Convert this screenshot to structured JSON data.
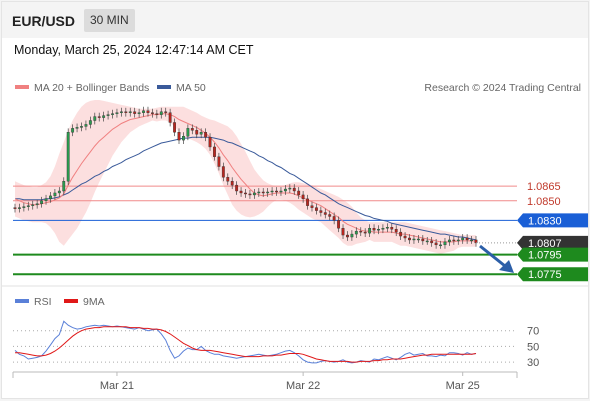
{
  "header": {
    "pair": "EUR/USD",
    "timeframe": "30 MIN",
    "timestamp": "Monday, March 25, 2024 12:47:14 AM CET"
  },
  "legend": {
    "ma20": "MA 20 + Bollinger Bands",
    "ma50": "MA 50",
    "credit": "Research © 2024 Trading Central",
    "rsi": "RSI",
    "rsi_ma": "9MA"
  },
  "colors": {
    "bollinger_fill": "#fbd4d4",
    "ma20": "#f08080",
    "ma50": "#3a5a9a",
    "resistance": "#f08a8a",
    "pivot": "#1a5fd6",
    "support": "#1e8a1e",
    "current": "#333333",
    "arrow": "#2c5fa8",
    "rsi_line": "#5a80d8",
    "rsi_ma_line": "#e01818"
  },
  "chart_data": [
    {
      "type": "candlestick",
      "title": "",
      "x_ticks": [
        "Mar 21",
        "Mar 22",
        "Mar 25"
      ],
      "ylim": [
        1.0765,
        1.0955
      ],
      "levels": [
        {
          "label": "1.0865",
          "value": 1.0865,
          "role": "resistance"
        },
        {
          "label": "1.0850",
          "value": 1.085,
          "role": "resistance"
        },
        {
          "label": "1.0830",
          "value": 1.083,
          "role": "pivot"
        },
        {
          "label": "1.0807",
          "value": 1.0807,
          "role": "current"
        },
        {
          "label": "1.0795",
          "value": 1.0795,
          "role": "support"
        },
        {
          "label": "1.0775",
          "value": 1.0775,
          "role": "support"
        }
      ],
      "close": [
        1.0842,
        1.0843,
        1.0844,
        1.0845,
        1.0846,
        1.0847,
        1.085,
        1.0852,
        1.0855,
        1.0858,
        1.086,
        1.087,
        1.092,
        1.0924,
        1.0925,
        1.0926,
        1.0928,
        1.0932,
        1.0936,
        1.0935,
        1.0937,
        1.0938,
        1.0939,
        1.094,
        1.0941,
        1.094,
        1.0941,
        1.0939,
        1.094,
        1.0942,
        1.094,
        1.0939,
        1.0938,
        1.0941,
        1.094,
        1.093,
        1.092,
        1.0912,
        1.0916,
        1.0924,
        1.0922,
        1.0918,
        1.092,
        1.0915,
        1.0905,
        1.0895,
        1.0885,
        1.0874,
        1.087,
        1.0866,
        1.086,
        1.0858,
        1.0857,
        1.0856,
        1.0858,
        1.0859,
        1.0858,
        1.0859,
        1.086,
        1.0859,
        1.086,
        1.0862,
        1.0863,
        1.086,
        1.0856,
        1.0852,
        1.0845,
        1.0843,
        1.084,
        1.0838,
        1.0836,
        1.0834,
        1.083,
        1.0822,
        1.0815,
        1.0813,
        1.0816,
        1.0819,
        1.0818,
        1.0817,
        1.0822,
        1.082,
        1.0821,
        1.0822,
        1.0823,
        1.0821,
        1.0818,
        1.0814,
        1.0812,
        1.081,
        1.0811,
        1.0811,
        1.0809,
        1.0809,
        1.0807,
        1.0805,
        1.0805,
        1.0808,
        1.081,
        1.0809,
        1.081,
        1.0812,
        1.081,
        1.081,
        1.0807
      ],
      "ma20": [
        1.0852,
        1.085,
        1.0848,
        1.0847,
        1.0846,
        1.0846,
        1.0847,
        1.0848,
        1.0849,
        1.0851,
        1.0853,
        1.0857,
        1.0866,
        1.0874,
        1.0881,
        1.0888,
        1.0894,
        1.09,
        1.0906,
        1.0911,
        1.0915,
        1.0919,
        1.0923,
        1.0926,
        1.0929,
        1.0931,
        1.0933,
        1.0934,
        1.0935,
        1.0936,
        1.0937,
        1.0938,
        1.0938,
        1.0939,
        1.0939,
        1.0938,
        1.0936,
        1.0933,
        1.0931,
        1.0929,
        1.0927,
        1.0925,
        1.0922,
        1.0919,
        1.0915,
        1.091,
        1.0904,
        1.0897,
        1.0891,
        1.0884,
        1.0878,
        1.0872,
        1.0867,
        1.0862,
        1.0858,
        1.0856,
        1.0855,
        1.0856,
        1.0857,
        1.0858,
        1.0858,
        1.0858,
        1.0858,
        1.0857,
        1.0855,
        1.0853,
        1.0851,
        1.0849,
        1.0847,
        1.0845,
        1.0842,
        1.0839,
        1.0836,
        1.0833,
        1.0829,
        1.0826,
        1.0824,
        1.0822,
        1.082,
        1.0819,
        1.0819,
        1.0818,
        1.0818,
        1.0818,
        1.0818,
        1.0818,
        1.0817,
        1.0816,
        1.0816,
        1.0815,
        1.0814,
        1.0813,
        1.0812,
        1.0811,
        1.081,
        1.0809,
        1.0808,
        1.0808,
        1.0808,
        1.0808,
        1.0809,
        1.0809,
        1.0809,
        1.0809,
        1.0809
      ],
      "ma50": [
        1.0852,
        1.0852,
        1.0851,
        1.0851,
        1.0851,
        1.0851,
        1.0851,
        1.0852,
        1.0852,
        1.0853,
        1.0854,
        1.0856,
        1.0858,
        1.0861,
        1.0864,
        1.0867,
        1.0869,
        1.0872,
        1.0875,
        1.0877,
        1.088,
        1.0882,
        1.0885,
        1.0887,
        1.0889,
        1.0892,
        1.0894,
        1.0896,
        1.0898,
        1.0901,
        1.0903,
        1.0905,
        1.0907,
        1.0909,
        1.091,
        1.0911,
        1.0912,
        1.0913,
        1.0914,
        1.0914,
        1.0915,
        1.0915,
        1.0915,
        1.0915,
        1.0915,
        1.0914,
        1.0913,
        1.0912,
        1.091,
        1.0909,
        1.0907,
        1.0905,
        1.0903,
        1.0901,
        1.0899,
        1.0896,
        1.0894,
        1.0891,
        1.0889,
        1.0886,
        1.0884,
        1.0881,
        1.0878,
        1.0876,
        1.0873,
        1.087,
        1.0867,
        1.0864,
        1.0861,
        1.0858,
        1.0856,
        1.0853,
        1.085,
        1.0847,
        1.0845,
        1.0843,
        1.0841,
        1.0839,
        1.0837,
        1.0835,
        1.0834,
        1.0832,
        1.0831,
        1.083,
        1.0829,
        1.0827,
        1.0826,
        1.0825,
        1.0824,
        1.0823,
        1.0822,
        1.0821,
        1.082,
        1.0819,
        1.0818,
        1.0817,
        1.0816,
        1.0816,
        1.0815,
        1.0814,
        1.0813,
        1.0813,
        1.0812,
        1.0811,
        1.081
      ],
      "bb_upper": [
        1.087,
        1.0868,
        1.0866,
        1.0865,
        1.0864,
        1.0864,
        1.0866,
        1.0869,
        1.0875,
        1.0885,
        1.0898,
        1.091,
        1.0922,
        1.0932,
        1.094,
        1.0946,
        1.095,
        1.0952,
        1.0953,
        1.0953,
        1.0952,
        1.0951,
        1.095,
        1.0949,
        1.0948,
        1.0947,
        1.0946,
        1.0945,
        1.0944,
        1.0944,
        1.0944,
        1.0944,
        1.0945,
        1.0946,
        1.0946,
        1.0946,
        1.0946,
        1.0946,
        1.0946,
        1.0944,
        1.0942,
        1.094,
        1.0937,
        1.0935,
        1.0933,
        1.0932,
        1.093,
        1.0928,
        1.0926,
        1.0922,
        1.0916,
        1.0908,
        1.09,
        1.0891,
        1.0882,
        1.0876,
        1.0871,
        1.0868,
        1.0866,
        1.0865,
        1.0865,
        1.0866,
        1.0868,
        1.0869,
        1.0869,
        1.0868,
        1.0867,
        1.0866,
        1.0864,
        1.0862,
        1.086,
        1.0858,
        1.0856,
        1.0854,
        1.0851,
        1.0848,
        1.0844,
        1.0838,
        1.0833,
        1.083,
        1.0828,
        1.0828,
        1.0828,
        1.0828,
        1.0828,
        1.0828,
        1.0828,
        1.0828,
        1.0828,
        1.0827,
        1.0826,
        1.0825,
        1.0824,
        1.0823,
        1.0822,
        1.0821,
        1.082,
        1.0819,
        1.0818,
        1.0817,
        1.0816,
        1.0815,
        1.0815,
        1.0815,
        1.0815
      ],
      "bb_lower": [
        1.0834,
        1.0832,
        1.083,
        1.0829,
        1.0828,
        1.0828,
        1.0828,
        1.0827,
        1.0823,
        1.0817,
        1.0808,
        1.0804,
        1.081,
        1.0816,
        1.0822,
        1.083,
        1.0838,
        1.0848,
        1.0859,
        1.0869,
        1.0878,
        1.0887,
        1.0896,
        1.0903,
        1.091,
        1.0915,
        1.092,
        1.0923,
        1.0926,
        1.0928,
        1.093,
        1.0932,
        1.0931,
        1.0932,
        1.0932,
        1.093,
        1.0926,
        1.092,
        1.0916,
        1.0914,
        1.0912,
        1.091,
        1.0907,
        1.0903,
        1.0897,
        1.0888,
        1.0878,
        1.0866,
        1.0856,
        1.0846,
        1.084,
        1.0836,
        1.0834,
        1.0833,
        1.0834,
        1.0836,
        1.0839,
        1.0844,
        1.0848,
        1.0851,
        1.0851,
        1.085,
        1.0848,
        1.0845,
        1.0841,
        1.0838,
        1.0835,
        1.0832,
        1.083,
        1.0828,
        1.0824,
        1.082,
        1.0816,
        1.0812,
        1.0807,
        1.0804,
        1.0804,
        1.0806,
        1.0807,
        1.0808,
        1.081,
        1.0808,
        1.0808,
        1.0808,
        1.0808,
        1.0808,
        1.0806,
        1.0804,
        1.0804,
        1.0803,
        1.0802,
        1.0801,
        1.08,
        1.0799,
        1.0798,
        1.0797,
        1.0796,
        1.0797,
        1.0798,
        1.0799,
        1.0802,
        1.0803,
        1.0803,
        1.0803,
        1.0803
      ]
    },
    {
      "type": "line",
      "title": "",
      "ylim": [
        20,
        90
      ],
      "y_ticks": [
        70,
        50,
        30
      ],
      "series": [
        {
          "name": "RSI",
          "values": [
            45,
            40,
            38,
            34,
            35,
            36,
            38,
            44,
            52,
            60,
            65,
            82,
            77,
            74,
            72,
            73,
            75,
            76,
            77,
            76,
            77,
            76,
            75,
            76,
            75,
            74,
            73,
            72,
            74,
            72,
            70,
            71,
            72,
            66,
            58,
            45,
            35,
            38,
            44,
            48,
            46,
            46,
            50,
            45,
            42,
            40,
            40,
            38,
            37,
            36,
            35,
            36,
            37,
            38,
            39,
            40,
            39,
            38,
            39,
            40,
            42,
            44,
            45,
            42,
            38,
            33,
            30,
            29,
            29,
            31,
            32,
            31,
            30,
            31,
            33,
            30,
            29,
            30,
            32,
            31,
            30,
            34,
            33,
            35,
            37,
            35,
            33,
            36,
            40,
            42,
            39,
            40,
            41,
            38,
            38,
            37,
            39,
            38,
            42,
            42,
            41,
            39,
            42,
            40,
            41
          ]
        },
        {
          "name": "9MA",
          "values": [
            42,
            42,
            41,
            40,
            39,
            38,
            38,
            39,
            41,
            44,
            48,
            53,
            58,
            63,
            67,
            70,
            72,
            73,
            74,
            74,
            75,
            75,
            75,
            75,
            75,
            75,
            74,
            74,
            74,
            73,
            73,
            72,
            72,
            71,
            69,
            66,
            62,
            58,
            54,
            51,
            48,
            46,
            45,
            45,
            45,
            44,
            43,
            42,
            41,
            40,
            39,
            38,
            37,
            37,
            37,
            37,
            38,
            38,
            38,
            39,
            39,
            40,
            41,
            41,
            41,
            40,
            38,
            36,
            34,
            33,
            32,
            31,
            31,
            31,
            31,
            31,
            30,
            30,
            31,
            31,
            31,
            32,
            32,
            33,
            33,
            34,
            34,
            34,
            35,
            36,
            37,
            38,
            39,
            39,
            40,
            40,
            40,
            40,
            40,
            40,
            40,
            40,
            40,
            40,
            41
          ]
        }
      ]
    }
  ]
}
